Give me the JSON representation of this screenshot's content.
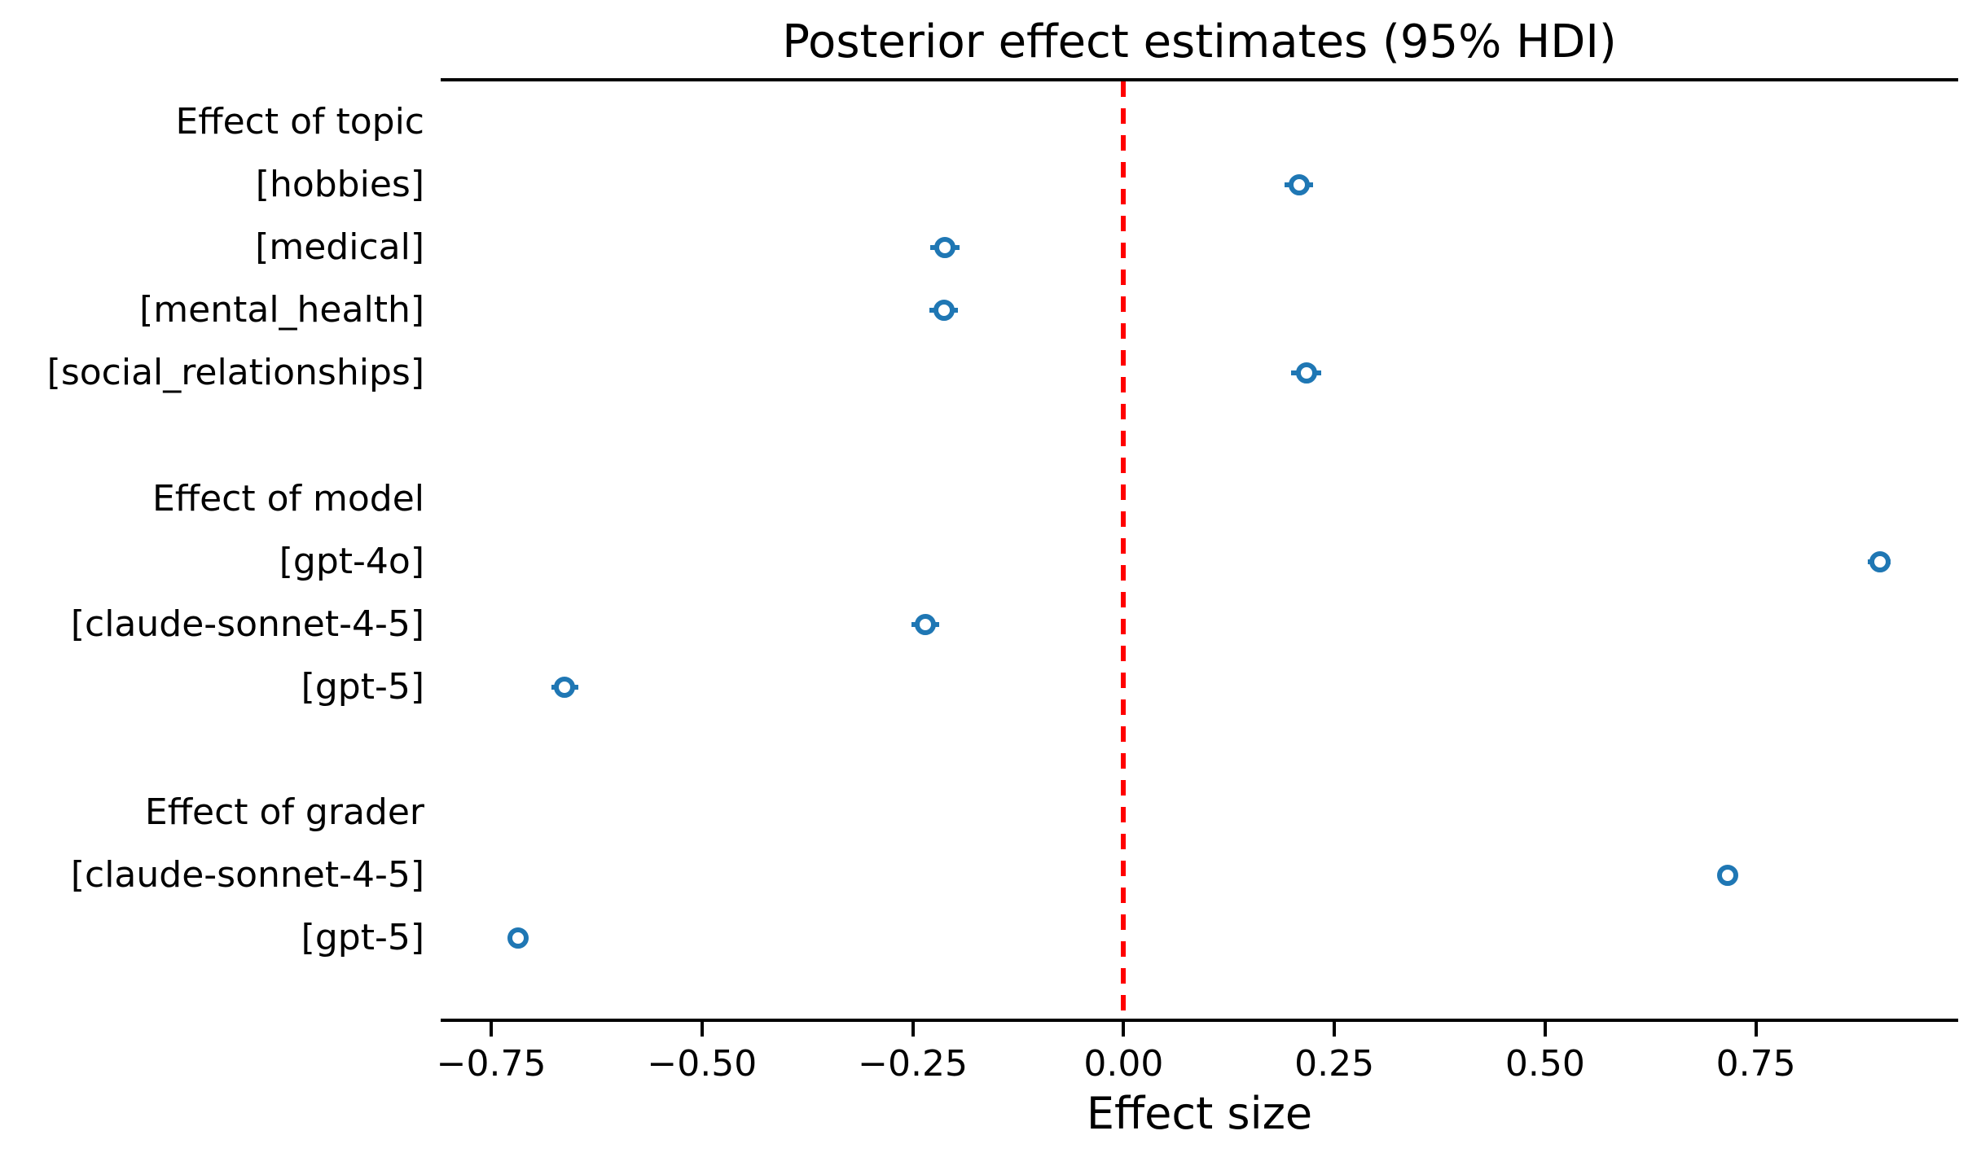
{
  "title": "Posterior effect estimates (95% HDI)",
  "xlabel": "Effect size",
  "colors": {
    "marker": "#1f77b4",
    "zero_line": "#ff0000",
    "spine": "#000000",
    "text": "#000000",
    "background": "#ffffff"
  },
  "chart_data": {
    "type": "scatter",
    "subtype": "forest-plot",
    "title": "Posterior effect estimates (95% HDI)",
    "xlabel": "Effect size",
    "ylabel": "",
    "xlim": [
      -0.81,
      0.99
    ],
    "grid": false,
    "legend": null,
    "x_ticks": [
      -0.75,
      -0.5,
      -0.25,
      0.0,
      0.25,
      0.5,
      0.75
    ],
    "x_tick_labels": [
      "−0.75",
      "−0.50",
      "−0.25",
      "0.00",
      "0.25",
      "0.50",
      "0.75"
    ],
    "zero_line": {
      "x": 0.0,
      "style": "dashed",
      "color": "#ff0000"
    },
    "rows": [
      {
        "type": "header",
        "label": "Effect of topic"
      },
      {
        "type": "data",
        "label": "[hobbies]",
        "mean": 0.208,
        "hdi_low": 0.191,
        "hdi_high": 0.225
      },
      {
        "type": "data",
        "label": "[medical]",
        "mean": -0.212,
        "hdi_low": -0.229,
        "hdi_high": -0.195
      },
      {
        "type": "data",
        "label": "[mental_health]",
        "mean": -0.213,
        "hdi_low": -0.23,
        "hdi_high": -0.196
      },
      {
        "type": "data",
        "label": "[social_relationships]",
        "mean": 0.217,
        "hdi_low": 0.199,
        "hdi_high": 0.234
      },
      {
        "type": "spacer",
        "label": ""
      },
      {
        "type": "header",
        "label": "Effect of model"
      },
      {
        "type": "data",
        "label": "[gpt-4o]",
        "mean": 0.897,
        "hdi_low": 0.883,
        "hdi_high": 0.91
      },
      {
        "type": "data",
        "label": "[claude-sonnet-4-5]",
        "mean": -0.235,
        "hdi_low": -0.252,
        "hdi_high": -0.219
      },
      {
        "type": "data",
        "label": "[gpt-5]",
        "mean": -0.663,
        "hdi_low": -0.679,
        "hdi_high": -0.647
      },
      {
        "type": "spacer",
        "label": ""
      },
      {
        "type": "header",
        "label": "Effect of grader"
      },
      {
        "type": "data",
        "label": "[claude-sonnet-4-5]",
        "mean": 0.717,
        "hdi_low": 0.71,
        "hdi_high": 0.724
      },
      {
        "type": "data",
        "label": "[gpt-5]",
        "mean": -0.718,
        "hdi_low": -0.725,
        "hdi_high": -0.711
      }
    ]
  }
}
